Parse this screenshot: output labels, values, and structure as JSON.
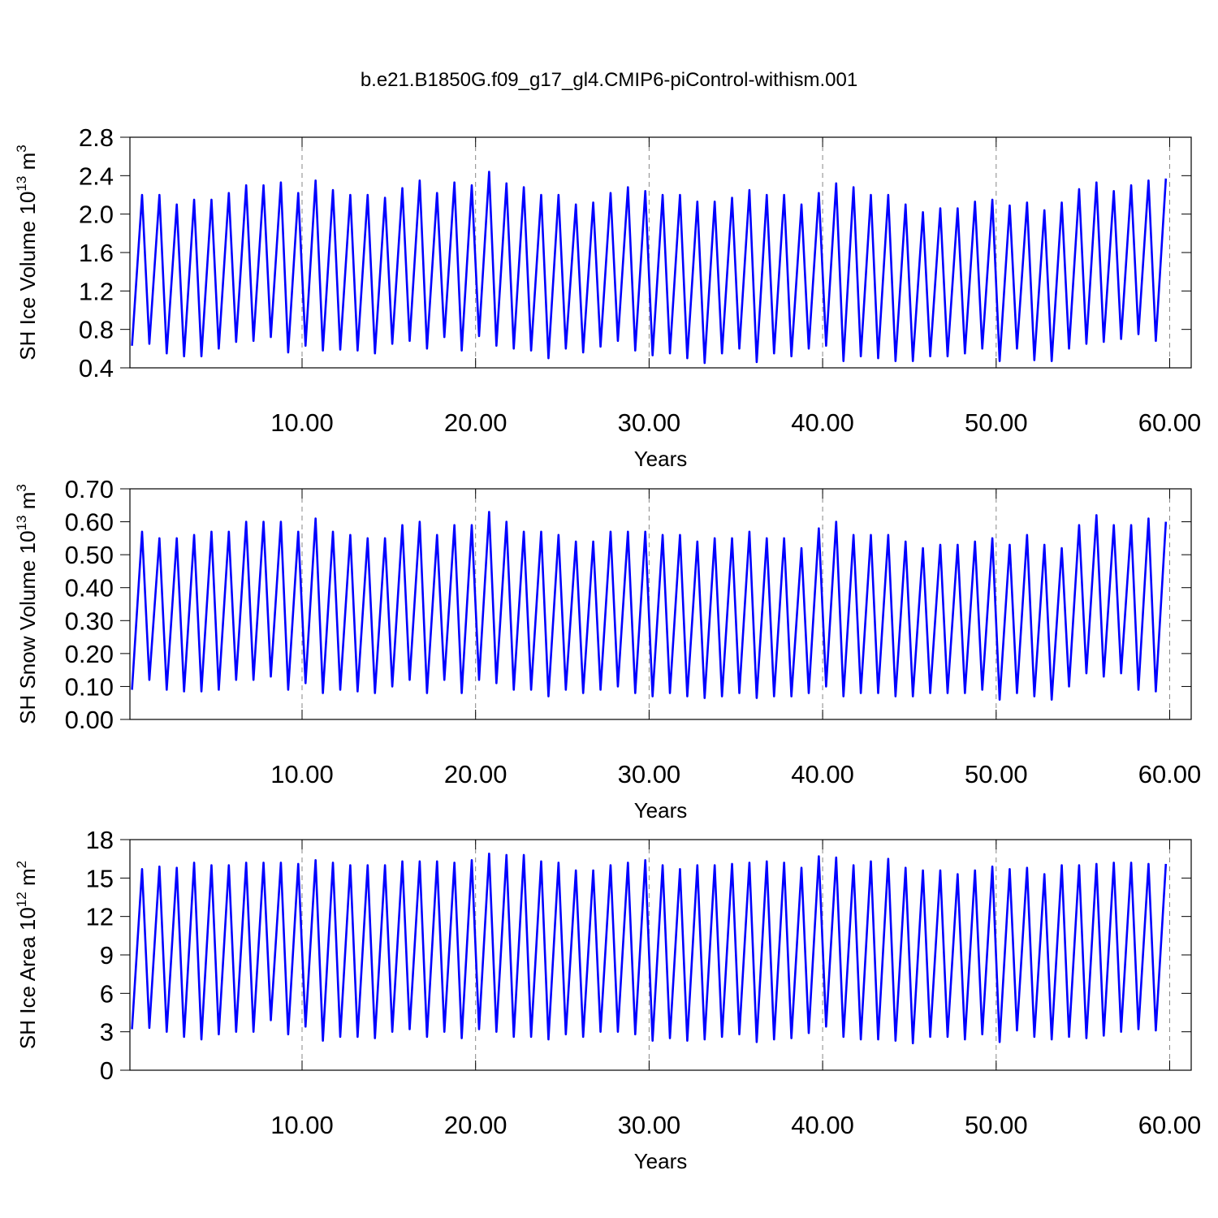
{
  "title": "b.e21.B1850G.f09_g17_gl4.CMIP6-piControl-withism.001",
  "chart_data": [
    {
      "type": "line",
      "ylabel": [
        "SH Ice Volume 10",
        "13",
        " m",
        "3"
      ],
      "xlabel": "Years",
      "xlim": [
        0.08,
        61.24
      ],
      "ylim": [
        0.4,
        2.8
      ],
      "xgrid": true,
      "xticks": [
        {
          "value": 10,
          "label": "10.00"
        },
        {
          "value": 20,
          "label": "20.00"
        },
        {
          "value": 30,
          "label": "30.00"
        },
        {
          "value": 40,
          "label": "40.00"
        },
        {
          "value": 50,
          "label": "50.00"
        },
        {
          "value": 60,
          "label": "60.00"
        }
      ],
      "yticks": [
        0.4,
        0.8,
        1.2,
        1.6,
        {
          "value": 2,
          "label": "2.0"
        },
        2.4,
        2.8
      ],
      "x": [
        0.2,
        0.78,
        1.2,
        1.78,
        2.2,
        2.78,
        3.2,
        3.78,
        4.2,
        4.78,
        5.2,
        5.78,
        6.2,
        6.78,
        7.2,
        7.78,
        8.2,
        8.78,
        9.2,
        9.78,
        10.2,
        10.78,
        11.2,
        11.78,
        12.2,
        12.78,
        13.2,
        13.78,
        14.2,
        14.78,
        15.2,
        15.78,
        16.2,
        16.78,
        17.2,
        17.78,
        18.2,
        18.78,
        19.2,
        19.78,
        20.2,
        20.78,
        21.2,
        21.78,
        22.2,
        22.78,
        23.2,
        23.78,
        24.2,
        24.78,
        25.2,
        25.78,
        26.2,
        26.78,
        27.2,
        27.78,
        28.2,
        28.78,
        29.2,
        29.78,
        30.2,
        30.78,
        31.2,
        31.78,
        32.2,
        32.78,
        33.2,
        33.78,
        34.2,
        34.78,
        35.2,
        35.78,
        36.2,
        36.78,
        37.2,
        37.78,
        38.2,
        38.78,
        39.2,
        39.78,
        40.2,
        40.78,
        41.2,
        41.78,
        42.2,
        42.78,
        43.2,
        43.78,
        44.2,
        44.78,
        45.2,
        45.78,
        46.2,
        46.78,
        47.2,
        47.78,
        48.2,
        48.78,
        49.2,
        49.78,
        50.2,
        50.78,
        51.2,
        51.78,
        52.2,
        52.78,
        53.2,
        53.78,
        54.2,
        54.78,
        55.2,
        55.78,
        56.2,
        56.78,
        57.2,
        57.78,
        58.2,
        58.78,
        59.2,
        59.78
      ],
      "series": [
        {
          "color": "#0000ff",
          "values": [
            0.63,
            2.2,
            0.65,
            2.2,
            0.55,
            2.1,
            0.52,
            2.15,
            0.52,
            2.15,
            0.6,
            2.22,
            0.67,
            2.3,
            0.68,
            2.3,
            0.72,
            2.33,
            0.56,
            2.22,
            0.63,
            2.35,
            0.58,
            2.25,
            0.59,
            2.2,
            0.58,
            2.2,
            0.55,
            2.17,
            0.65,
            2.27,
            0.68,
            2.35,
            0.6,
            2.22,
            0.72,
            2.33,
            0.58,
            2.3,
            0.73,
            2.44,
            0.63,
            2.32,
            0.6,
            2.28,
            0.58,
            2.2,
            0.5,
            2.2,
            0.6,
            2.1,
            0.56,
            2.12,
            0.62,
            2.22,
            0.68,
            2.28,
            0.58,
            2.24,
            0.53,
            2.2,
            0.55,
            2.2,
            0.5,
            2.13,
            0.45,
            2.13,
            0.55,
            2.17,
            0.6,
            2.25,
            0.46,
            2.2,
            0.55,
            2.2,
            0.52,
            2.1,
            0.6,
            2.22,
            0.63,
            2.32,
            0.47,
            2.28,
            0.52,
            2.2,
            0.5,
            2.2,
            0.47,
            2.1,
            0.47,
            2.02,
            0.52,
            2.06,
            0.52,
            2.06,
            0.55,
            2.13,
            0.6,
            2.15,
            0.47,
            2.09,
            0.6,
            2.12,
            0.48,
            2.04,
            0.47,
            2.12,
            0.6,
            2.26,
            0.65,
            2.33,
            0.67,
            2.24,
            0.7,
            2.3,
            0.75,
            2.35,
            0.68,
            2.37
          ]
        }
      ]
    },
    {
      "type": "line",
      "ylabel": [
        "SH Snow Volume 10",
        "13",
        " m",
        "3"
      ],
      "xlabel": "Years",
      "xlim": [
        0.08,
        61.24
      ],
      "ylim": [
        0,
        0.7
      ],
      "xgrid": true,
      "xticks": [
        {
          "value": 10,
          "label": "10.00"
        },
        {
          "value": 20,
          "label": "20.00"
        },
        {
          "value": 30,
          "label": "30.00"
        },
        {
          "value": 40,
          "label": "40.00"
        },
        {
          "value": 50,
          "label": "50.00"
        },
        {
          "value": 60,
          "label": "60.00"
        }
      ],
      "yticks": [
        {
          "value": 0,
          "label": "0.00"
        },
        {
          "value": 0.1,
          "label": "0.10"
        },
        {
          "value": 0.2,
          "label": "0.20"
        },
        {
          "value": 0.3,
          "label": "0.30"
        },
        {
          "value": 0.4,
          "label": "0.40"
        },
        {
          "value": 0.5,
          "label": "0.50"
        },
        {
          "value": 0.6,
          "label": "0.60"
        },
        {
          "value": 0.7,
          "label": "0.70"
        }
      ],
      "x": [
        0.2,
        0.78,
        1.2,
        1.78,
        2.2,
        2.78,
        3.2,
        3.78,
        4.2,
        4.78,
        5.2,
        5.78,
        6.2,
        6.78,
        7.2,
        7.78,
        8.2,
        8.78,
        9.2,
        9.78,
        10.2,
        10.78,
        11.2,
        11.78,
        12.2,
        12.78,
        13.2,
        13.78,
        14.2,
        14.78,
        15.2,
        15.78,
        16.2,
        16.78,
        17.2,
        17.78,
        18.2,
        18.78,
        19.2,
        19.78,
        20.2,
        20.78,
        21.2,
        21.78,
        22.2,
        22.78,
        23.2,
        23.78,
        24.2,
        24.78,
        25.2,
        25.78,
        26.2,
        26.78,
        27.2,
        27.78,
        28.2,
        28.78,
        29.2,
        29.78,
        30.2,
        30.78,
        31.2,
        31.78,
        32.2,
        32.78,
        33.2,
        33.78,
        34.2,
        34.78,
        35.2,
        35.78,
        36.2,
        36.78,
        37.2,
        37.78,
        38.2,
        38.78,
        39.2,
        39.78,
        40.2,
        40.78,
        41.2,
        41.78,
        42.2,
        42.78,
        43.2,
        43.78,
        44.2,
        44.78,
        45.2,
        45.78,
        46.2,
        46.78,
        47.2,
        47.78,
        48.2,
        48.78,
        49.2,
        49.78,
        50.2,
        50.78,
        51.2,
        51.78,
        52.2,
        52.78,
        53.2,
        53.78,
        54.2,
        54.78,
        55.2,
        55.78,
        56.2,
        56.78,
        57.2,
        57.78,
        58.2,
        58.78,
        59.2,
        59.78
      ],
      "series": [
        {
          "color": "#0000ff",
          "values": [
            0.09,
            0.57,
            0.12,
            0.55,
            0.09,
            0.55,
            0.085,
            0.56,
            0.085,
            0.57,
            0.09,
            0.57,
            0.12,
            0.6,
            0.12,
            0.6,
            0.13,
            0.6,
            0.09,
            0.57,
            0.11,
            0.61,
            0.08,
            0.57,
            0.09,
            0.56,
            0.085,
            0.55,
            0.08,
            0.55,
            0.1,
            0.59,
            0.12,
            0.6,
            0.08,
            0.56,
            0.12,
            0.59,
            0.08,
            0.59,
            0.12,
            0.63,
            0.11,
            0.6,
            0.09,
            0.57,
            0.09,
            0.57,
            0.07,
            0.56,
            0.09,
            0.54,
            0.08,
            0.54,
            0.09,
            0.57,
            0.1,
            0.57,
            0.08,
            0.57,
            0.07,
            0.56,
            0.08,
            0.56,
            0.07,
            0.54,
            0.065,
            0.55,
            0.07,
            0.55,
            0.08,
            0.57,
            0.065,
            0.55,
            0.07,
            0.55,
            0.07,
            0.52,
            0.08,
            0.58,
            0.1,
            0.6,
            0.07,
            0.56,
            0.08,
            0.56,
            0.08,
            0.56,
            0.07,
            0.54,
            0.07,
            0.52,
            0.08,
            0.53,
            0.08,
            0.53,
            0.08,
            0.54,
            0.09,
            0.55,
            0.06,
            0.53,
            0.08,
            0.56,
            0.07,
            0.53,
            0.06,
            0.52,
            0.1,
            0.59,
            0.14,
            0.62,
            0.13,
            0.59,
            0.14,
            0.59,
            0.09,
            0.61,
            0.085,
            0.6
          ]
        }
      ]
    },
    {
      "type": "line",
      "ylabel": [
        "SH Ice Area 10",
        "12",
        " m",
        "2"
      ],
      "xlabel": "Years",
      "xlim": [
        0.08,
        61.24
      ],
      "ylim": [
        0,
        18
      ],
      "xgrid": true,
      "xticks": [
        {
          "value": 10,
          "label": "10.00"
        },
        {
          "value": 20,
          "label": "20.00"
        },
        {
          "value": 30,
          "label": "30.00"
        },
        {
          "value": 40,
          "label": "40.00"
        },
        {
          "value": 50,
          "label": "50.00"
        },
        {
          "value": 60,
          "label": "60.00"
        }
      ],
      "yticks": [
        0,
        3,
        6,
        9,
        12,
        15,
        18
      ],
      "x": [
        0.2,
        0.78,
        1.2,
        1.78,
        2.2,
        2.78,
        3.2,
        3.78,
        4.2,
        4.78,
        5.2,
        5.78,
        6.2,
        6.78,
        7.2,
        7.78,
        8.2,
        8.78,
        9.2,
        9.78,
        10.2,
        10.78,
        11.2,
        11.78,
        12.2,
        12.78,
        13.2,
        13.78,
        14.2,
        14.78,
        15.2,
        15.78,
        16.2,
        16.78,
        17.2,
        17.78,
        18.2,
        18.78,
        19.2,
        19.78,
        20.2,
        20.78,
        21.2,
        21.78,
        22.2,
        22.78,
        23.2,
        23.78,
        24.2,
        24.78,
        25.2,
        25.78,
        26.2,
        26.78,
        27.2,
        27.78,
        28.2,
        28.78,
        29.2,
        29.78,
        30.2,
        30.78,
        31.2,
        31.78,
        32.2,
        32.78,
        33.2,
        33.78,
        34.2,
        34.78,
        35.2,
        35.78,
        36.2,
        36.78,
        37.2,
        37.78,
        38.2,
        38.78,
        39.2,
        39.78,
        40.2,
        40.78,
        41.2,
        41.78,
        42.2,
        42.78,
        43.2,
        43.78,
        44.2,
        44.78,
        45.2,
        45.78,
        46.2,
        46.78,
        47.2,
        47.78,
        48.2,
        48.78,
        49.2,
        49.78,
        50.2,
        50.78,
        51.2,
        51.78,
        52.2,
        52.78,
        53.2,
        53.78,
        54.2,
        54.78,
        55.2,
        55.78,
        56.2,
        56.78,
        57.2,
        57.78,
        58.2,
        58.78,
        59.2,
        59.78
      ],
      "series": [
        {
          "color": "#0000ff",
          "values": [
            3.2,
            15.7,
            3.3,
            15.9,
            3.0,
            15.8,
            2.6,
            16.2,
            2.4,
            16.0,
            2.8,
            16.0,
            3.0,
            16.2,
            3.0,
            16.2,
            3.9,
            16.2,
            2.8,
            16.1,
            3.4,
            16.4,
            2.3,
            16.2,
            2.6,
            16.0,
            2.6,
            16.0,
            2.5,
            16.0,
            3.0,
            16.3,
            3.2,
            16.3,
            2.6,
            16.3,
            3.0,
            16.2,
            2.5,
            16.4,
            3.2,
            16.9,
            3.0,
            16.8,
            2.6,
            16.8,
            2.6,
            16.3,
            2.4,
            16.2,
            2.8,
            15.6,
            2.6,
            15.6,
            3.0,
            16.0,
            3.0,
            16.2,
            2.8,
            16.4,
            2.3,
            16.0,
            2.5,
            15.7,
            2.3,
            16.0,
            2.4,
            16.0,
            2.6,
            16.1,
            2.8,
            16.2,
            2.2,
            16.3,
            2.4,
            16.2,
            2.5,
            15.8,
            2.9,
            16.7,
            3.4,
            16.6,
            2.6,
            16.0,
            2.4,
            16.3,
            2.4,
            16.5,
            2.3,
            15.8,
            2.1,
            15.6,
            2.6,
            15.6,
            2.6,
            15.3,
            2.4,
            15.6,
            2.8,
            15.9,
            2.2,
            15.7,
            3.1,
            15.8,
            2.6,
            15.3,
            2.4,
            16.0,
            2.6,
            16.0,
            2.5,
            16.1,
            2.7,
            16.2,
            3.0,
            16.2,
            3.2,
            16.1,
            3.1,
            16.1
          ]
        }
      ]
    }
  ]
}
